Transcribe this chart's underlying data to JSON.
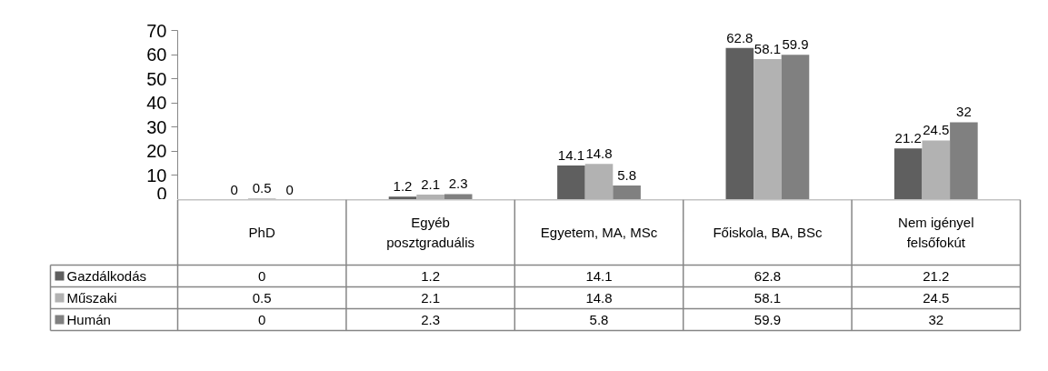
{
  "chart_data": {
    "type": "bar",
    "categories": [
      "PhD",
      "Egyéb posztgraduális",
      "Egyetem, MA, MSc",
      "Főiskola, BA, BSc",
      "Nem igényel felsőfokút"
    ],
    "series": [
      {
        "name": "Gazdálkodás",
        "color": "#5f5f5f",
        "values": [
          0,
          1.2,
          14.1,
          62.8,
          21.2
        ],
        "value_labels": [
          "0",
          "1.2",
          "14.1",
          "62.8",
          "21.2"
        ]
      },
      {
        "name": "Műszaki",
        "color": "#b2b2b2",
        "values": [
          0.5,
          2.1,
          14.8,
          58.1,
          24.5
        ],
        "value_labels": [
          "0.5",
          "2.1",
          "14.8",
          "58.1",
          "24.5"
        ]
      },
      {
        "name": "Humán",
        "color": "#808080",
        "values": [
          0,
          2.3,
          5.8,
          59.9,
          32
        ],
        "value_labels": [
          "0",
          "2.3",
          "5.8",
          "59.9",
          "32"
        ]
      }
    ],
    "ylim": [
      0,
      70
    ],
    "yticks": [
      0,
      10,
      20,
      30,
      40,
      50,
      60,
      70
    ],
    "data_labels": true,
    "legend": "bottom",
    "grid": false
  }
}
